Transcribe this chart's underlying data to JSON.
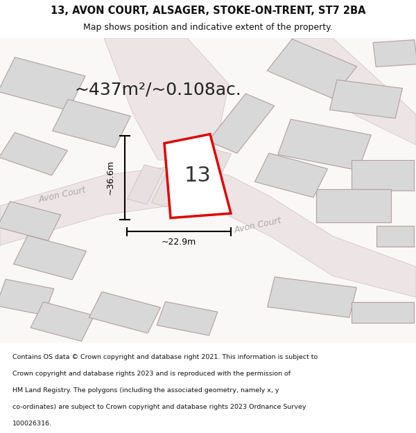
{
  "title_line1": "13, AVON COURT, ALSAGER, STOKE-ON-TRENT, ST7 2BA",
  "title_line2": "Map shows position and indicative extent of the property.",
  "area_text": "~437m²/~0.108ac.",
  "property_number": "13",
  "dim_vertical": "~36.6m",
  "dim_horizontal": "~22.9m",
  "street_label1": "Avon Court",
  "street_label2": "Avon Court",
  "footer_lines": [
    "Contains OS data © Crown copyright and database right 2021. This information is subject to",
    "Crown copyright and database rights 2023 and is reproduced with the permission of",
    "HM Land Registry. The polygons (including the associated geometry, namely x, y",
    "co-ordinates) are subject to Crown copyright and database rights 2023 Ordnance Survey",
    "100026316."
  ],
  "map_bg": "#faf7f7",
  "property_fill": "#ffffff",
  "property_edge": "#e00000",
  "building_fill": "#d8d8d8",
  "building_edge": "#b0a0a0",
  "road_fill": "#ede5e5",
  "road_edge": "#d0c0c0",
  "dim_color": "#000000",
  "street_text_color": "#aaaaaa",
  "annotation_color": "#222222"
}
